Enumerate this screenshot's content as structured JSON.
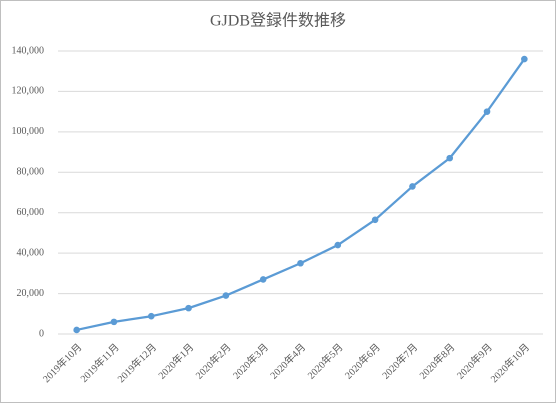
{
  "chart_data": {
    "type": "line",
    "title": "GJDB登録件数推移",
    "categories": [
      "2019年10月",
      "2019年11月",
      "2019年12月",
      "2020年1月",
      "2020年2月",
      "2020年3月",
      "2020年4月",
      "2020年5月",
      "2020年6月",
      "2020年7月",
      "2020年8月",
      "2020年9月",
      "2020年10月"
    ],
    "values": [
      2000,
      6000,
      8800,
      12800,
      19000,
      27000,
      35000,
      44000,
      56500,
      73000,
      87000,
      110000,
      136000
    ],
    "color": "#5b9bd5",
    "ylim": [
      0,
      140000
    ],
    "yticks": [
      0,
      {
        "value": 20000,
        "label": "20,000"
      },
      {
        "value": 40000,
        "label": "40,000"
      },
      {
        "value": 60000,
        "label": "60,000"
      },
      {
        "value": 80000,
        "label": "80,000"
      },
      {
        "value": 100000,
        "label": "100,000"
      },
      {
        "value": 120000,
        "label": "120,000"
      },
      {
        "value": 140000,
        "label": "140,000"
      }
    ],
    "grid": true
  }
}
